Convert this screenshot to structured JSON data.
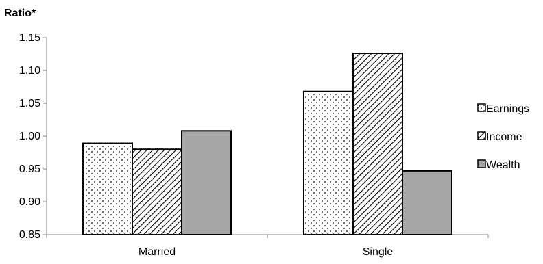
{
  "chart_data": {
    "type": "bar",
    "ylabel": "Ratio*",
    "xlabel": "",
    "title": "",
    "ylim": [
      0.85,
      1.15
    ],
    "yticks": [
      "0.85",
      "0.90",
      "0.95",
      "1.00",
      "1.05",
      "1.10",
      "1.15"
    ],
    "categories": [
      "Married",
      "Single"
    ],
    "series": [
      {
        "name": "Earnings",
        "values": [
          0.989,
          1.068
        ],
        "pattern": "dots"
      },
      {
        "name": "Income",
        "values": [
          0.98,
          1.126
        ],
        "pattern": "hatch"
      },
      {
        "name": "Wealth",
        "values": [
          1.008,
          0.947
        ],
        "pattern": "solid-gray"
      }
    ],
    "legend_position": "right",
    "grid": false,
    "colors": {
      "bar_stroke": "#000000",
      "wealth_fill": "#a6a6a6",
      "axis": "#808080"
    }
  }
}
